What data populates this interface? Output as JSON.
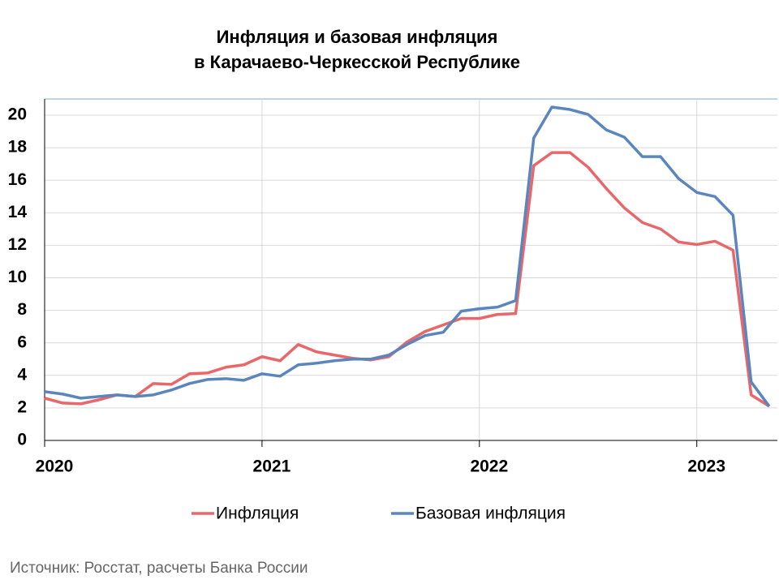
{
  "chart_data": {
    "type": "line",
    "title": "Инфляция и базовая инфляция",
    "subtitle": "в Карачаево-Черкесской Республике",
    "source": "Источник: Росстат, расчеты Банка России",
    "categories": [
      "2020",
      null,
      null,
      null,
      null,
      null,
      null,
      null,
      null,
      null,
      null,
      null,
      "2021",
      null,
      null,
      null,
      null,
      null,
      null,
      null,
      null,
      null,
      null,
      null,
      "2022",
      null,
      null,
      null,
      null,
      null,
      null,
      null,
      null,
      null,
      null,
      null,
      "2023",
      null,
      null,
      null,
      null
    ],
    "series": [
      {
        "name": "Инфляция",
        "color": "#e8676b",
        "values": [
          2.6,
          2.3,
          2.25,
          2.5,
          2.8,
          2.7,
          3.5,
          3.45,
          4.1,
          4.15,
          4.5,
          4.65,
          5.15,
          4.9,
          5.9,
          5.45,
          5.25,
          5.05,
          4.95,
          5.15,
          6.05,
          6.7,
          7.1,
          7.5,
          7.5,
          7.75,
          7.8,
          16.9,
          17.7,
          17.7,
          16.8,
          15.5,
          14.3,
          13.4,
          13.0,
          12.2,
          12.05,
          12.25,
          11.7,
          2.8,
          2.1
        ]
      },
      {
        "name": "Базовая инфляция",
        "color": "#5b86bd",
        "values": [
          3.0,
          2.85,
          2.6,
          2.7,
          2.8,
          2.7,
          2.8,
          3.1,
          3.5,
          3.75,
          3.8,
          3.7,
          4.1,
          3.95,
          4.65,
          4.75,
          4.9,
          5.0,
          5.0,
          5.25,
          5.9,
          6.45,
          6.65,
          7.95,
          8.1,
          8.2,
          8.6,
          18.6,
          20.5,
          20.35,
          20.05,
          19.1,
          18.65,
          17.45,
          17.45,
          16.1,
          15.25,
          15.0,
          13.85,
          3.6,
          2.1
        ]
      }
    ],
    "ylim": [
      0,
      21
    ],
    "yticks": [
      0,
      2,
      4,
      6,
      8,
      10,
      12,
      14,
      16,
      18,
      20
    ],
    "grid": true,
    "legend": "bottom"
  }
}
